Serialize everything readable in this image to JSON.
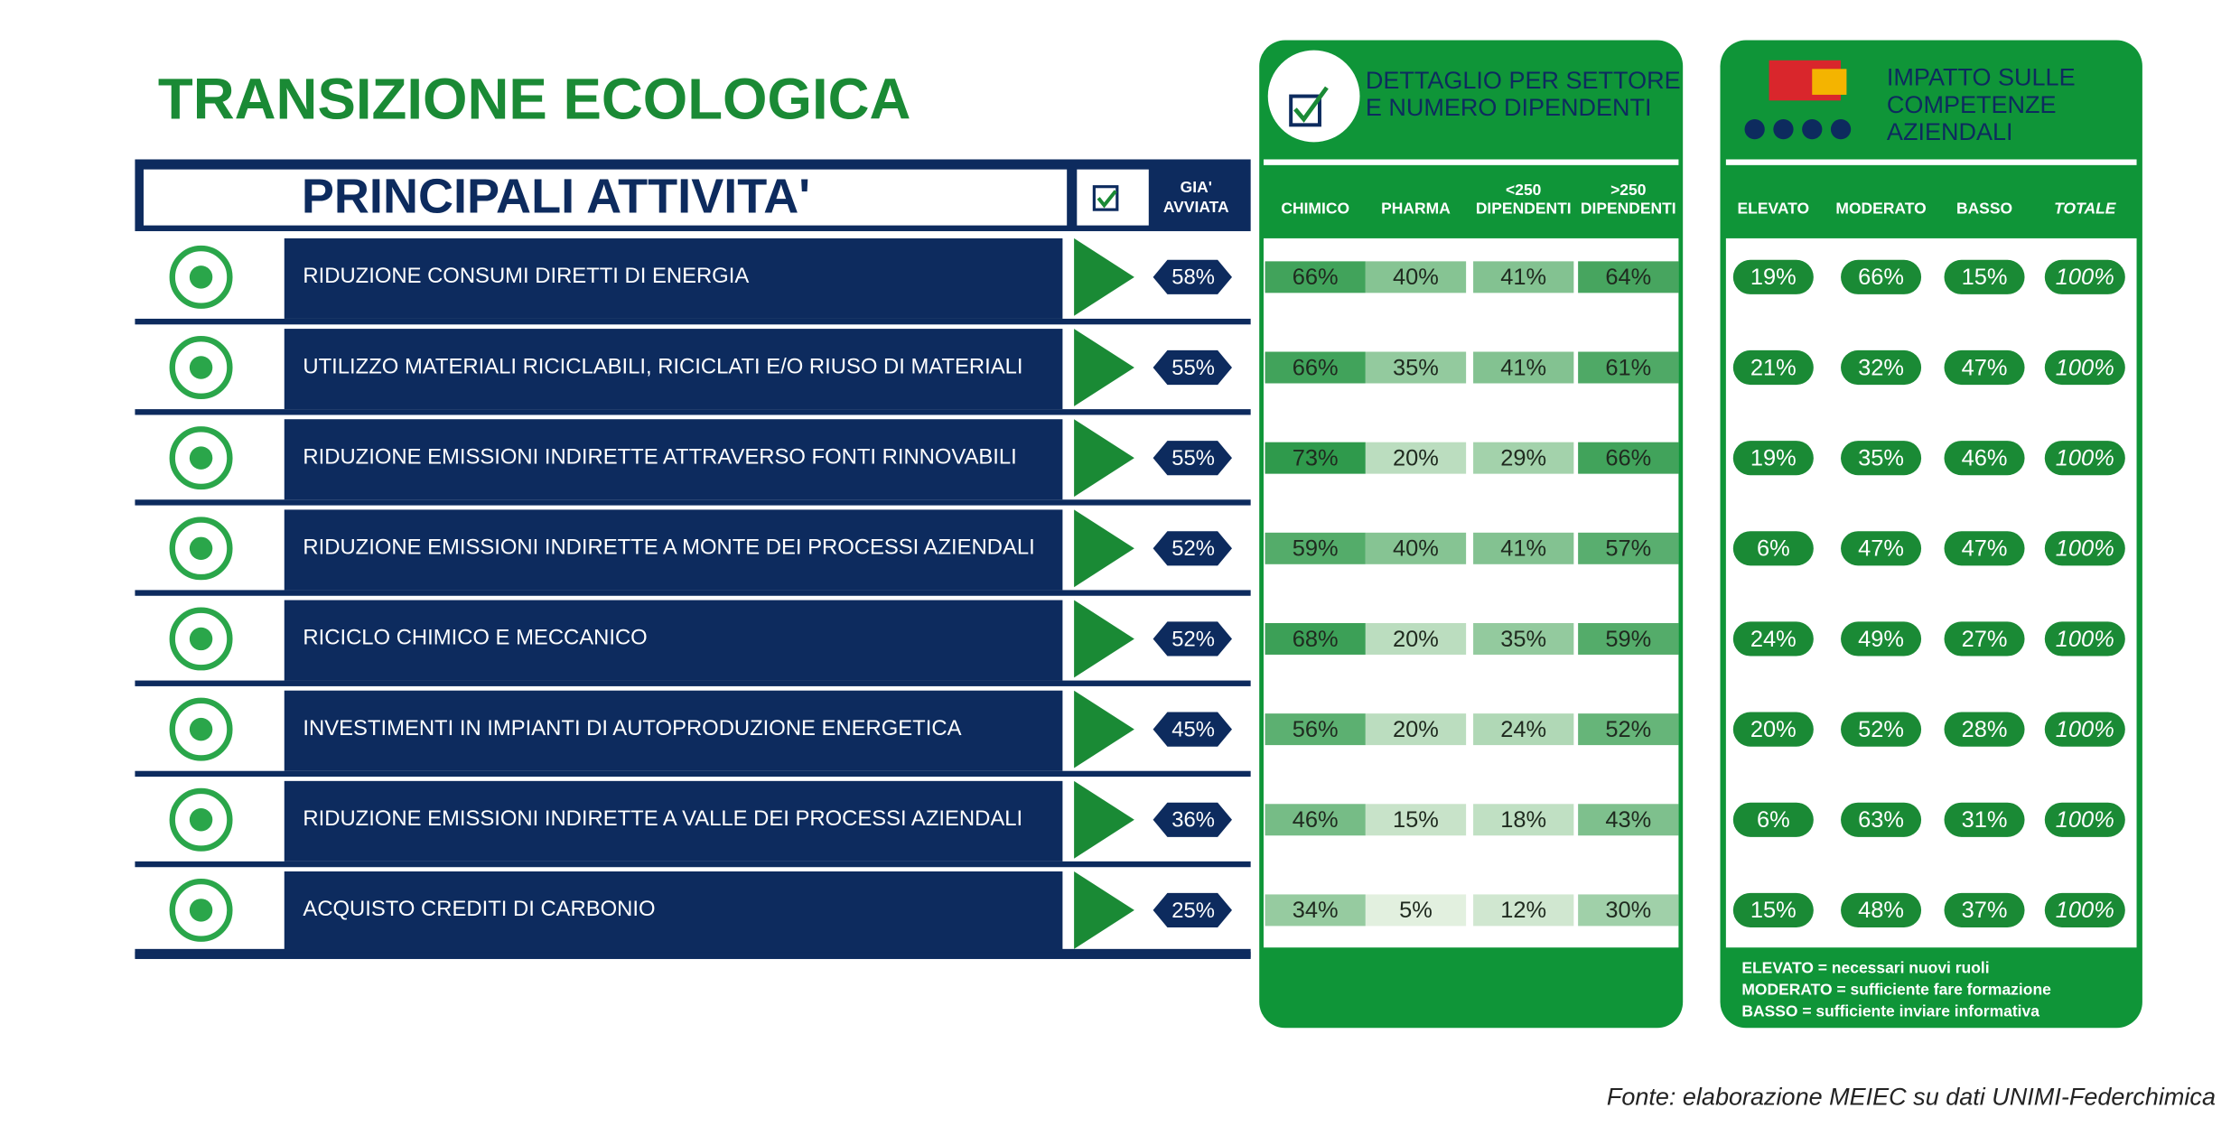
{
  "title": "TRANSIZIONE ECOLOGICA",
  "activities": {
    "header": "PRINCIPALI ATTIVITA'",
    "started_header": [
      "GIA'",
      "AVVIATA"
    ],
    "rows": [
      {
        "label": "RIDUZIONE CONSUMI DIRETTI DI ENERGIA",
        "started": "58%"
      },
      {
        "label": "UTILIZZO MATERIALI RICICLABILI, RICICLATI E/O RIUSO DI MATERIALI",
        "started": "55%"
      },
      {
        "label": "RIDUZIONE EMISSIONI INDIRETTE ATTRAVERSO FONTI RINNOVABILI",
        "started": "55%"
      },
      {
        "label": "RIDUZIONE EMISSIONI INDIRETTE A MONTE DEI PROCESSI AZIENDALI",
        "started": "52%"
      },
      {
        "label": "RICICLO CHIMICO E MECCANICO",
        "started": "52%"
      },
      {
        "label": "INVESTIMENTI IN IMPIANTI DI AUTOPRODUZIONE ENERGETICA",
        "started": "45%"
      },
      {
        "label": "RIDUZIONE EMISSIONI INDIRETTE A VALLE DEI PROCESSI AZIENDALI",
        "started": "36%"
      },
      {
        "label": "ACQUISTO CREDITI DI CARBONIO",
        "started": "25%"
      }
    ]
  },
  "sector_panel": {
    "title": [
      "DETTAGLIO PER SETTORE",
      "E NUMERO DIPENDENTI"
    ],
    "columns": [
      [
        "CHIMICO"
      ],
      [
        "PHARMA"
      ],
      [
        "<250",
        "DIPENDENTI"
      ],
      [
        ">250",
        "DIPENDENTI"
      ]
    ],
    "rows": [
      [
        "66%",
        "40%",
        "41%",
        "64%"
      ],
      [
        "66%",
        "35%",
        "41%",
        "61%"
      ],
      [
        "73%",
        "20%",
        "29%",
        "66%"
      ],
      [
        "59%",
        "40%",
        "41%",
        "57%"
      ],
      [
        "68%",
        "20%",
        "35%",
        "59%"
      ],
      [
        "56%",
        "20%",
        "24%",
        "52%"
      ],
      [
        "46%",
        "15%",
        "18%",
        "43%"
      ],
      [
        "34%",
        "5%",
        "12%",
        "30%"
      ]
    ]
  },
  "impact_panel": {
    "title": [
      "IMPATTO SULLE",
      "COMPETENZE",
      "AZIENDALI"
    ],
    "columns": [
      "ELEVATO",
      "MODERATO",
      "BASSO",
      "TOTALE"
    ],
    "rows": [
      [
        "19%",
        "66%",
        "15%",
        "100%"
      ],
      [
        "21%",
        "32%",
        "47%",
        "100%"
      ],
      [
        "19%",
        "35%",
        "46%",
        "100%"
      ],
      [
        "6%",
        "47%",
        "47%",
        "100%"
      ],
      [
        "24%",
        "49%",
        "27%",
        "100%"
      ],
      [
        "20%",
        "52%",
        "28%",
        "100%"
      ],
      [
        "6%",
        "63%",
        "31%",
        "100%"
      ],
      [
        "15%",
        "48%",
        "37%",
        "100%"
      ]
    ],
    "legend": [
      "ELEVATO = necessari nuovi ruoli",
      "MODERATO = sufficiente fare formazione",
      "BASSO = sufficiente inviare informativa"
    ]
  },
  "source": "Fonte: elaborazione MEIEC su dati UNIMI-Federchimica"
}
